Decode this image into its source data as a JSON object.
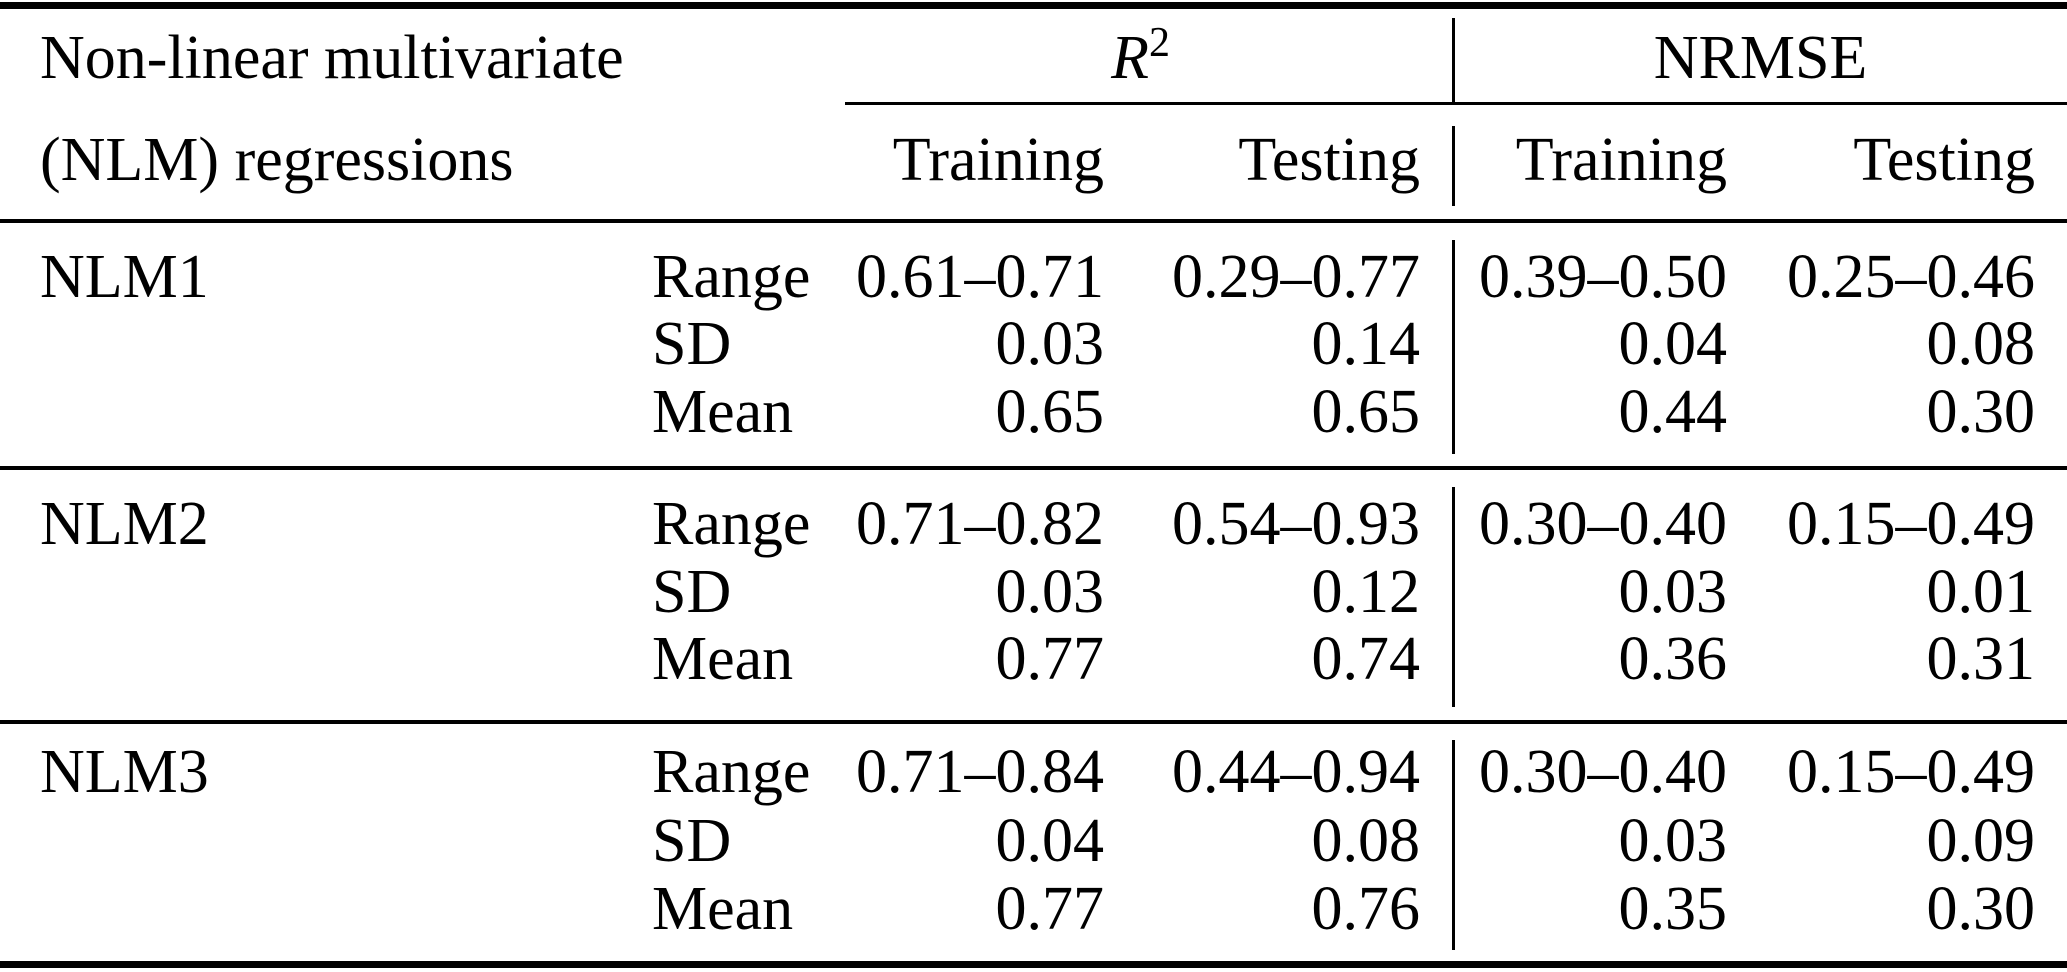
{
  "page": {
    "background": "#ffffff",
    "text_color": "#000000"
  },
  "table": {
    "title_line1": "Non-linear multivariate",
    "title_line2": "(NLM) regressions",
    "col_groups": [
      {
        "label_base": "R",
        "label_sup": "2"
      },
      {
        "label": "NRMSE"
      }
    ],
    "subheaders": [
      "Training",
      "Testing",
      "Training",
      "Testing"
    ],
    "blocks": [
      {
        "name": "NLM1",
        "stats": [
          {
            "label": "Range",
            "values": [
              "0.61–0.71",
              "0.29–0.77",
              "0.39–0.50",
              "0.25–0.46"
            ]
          },
          {
            "label": "SD",
            "values": [
              "0.03",
              "0.14",
              "0.04",
              "0.08"
            ]
          },
          {
            "label": "Mean",
            "values": [
              "0.65",
              "0.65",
              "0.44",
              "0.30"
            ]
          }
        ]
      },
      {
        "name": "NLM2",
        "stats": [
          {
            "label": "Range",
            "values": [
              "0.71–0.82",
              "0.54–0.93",
              "0.30–0.40",
              "0.15–0.49"
            ]
          },
          {
            "label": "SD",
            "values": [
              "0.03",
              "0.12",
              "0.03",
              "0.01"
            ]
          },
          {
            "label": "Mean",
            "values": [
              "0.77",
              "0.74",
              "0.36",
              "0.31"
            ]
          }
        ]
      },
      {
        "name": "NLM3",
        "stats": [
          {
            "label": "Range",
            "values": [
              "0.71–0.84",
              "0.44–0.94",
              "0.30–0.40",
              "0.15–0.49"
            ]
          },
          {
            "label": "SD",
            "values": [
              "0.04",
              "0.08",
              "0.03",
              "0.09"
            ]
          },
          {
            "label": "Mean",
            "values": [
              "0.77",
              "0.76",
              "0.35",
              "0.30"
            ]
          }
        ]
      }
    ]
  }
}
